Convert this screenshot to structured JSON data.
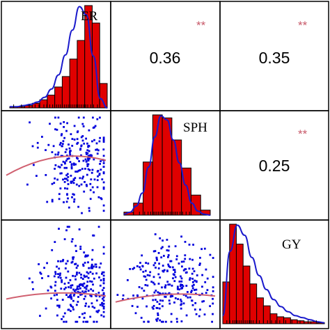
{
  "colors": {
    "bar_fill": "#e00000",
    "bar_stroke": "#000000",
    "density_line": "#1a1acc",
    "scatter_point": "#0000dd",
    "trend_line": "#d06070",
    "stars": "#c85a6a",
    "panel_border": "#000000",
    "rug": "#000000"
  },
  "chart_data": {
    "type": "pairs",
    "variables": [
      "ER",
      "SPH",
      "GY"
    ],
    "axes_visible": false,
    "grid": false,
    "correlations": [
      {
        "row": 0,
        "col": 1,
        "value": "0.36",
        "significance": "**"
      },
      {
        "row": 0,
        "col": 2,
        "value": "0.35",
        "significance": "**"
      },
      {
        "row": 1,
        "col": 2,
        "value": "0.25",
        "significance": "**"
      }
    ],
    "histograms": [
      {
        "variable": "ER",
        "type": "bar",
        "bin_counts": [
          1,
          1,
          2,
          4,
          7,
          11,
          18,
          27,
          42,
          58,
          88,
          73,
          21
        ],
        "density": [
          1,
          1,
          2,
          3,
          5,
          9,
          16,
          28,
          45,
          66,
          86,
          79,
          44,
          8,
          0
        ],
        "rug": [
          0.04,
          0.12,
          0.2,
          0.26,
          0.3,
          0.35,
          0.38,
          0.41,
          0.44,
          0.46,
          0.48,
          0.5,
          0.52,
          0.54,
          0.56,
          0.58,
          0.6,
          0.62,
          0.64,
          0.66,
          0.68,
          0.7,
          0.72,
          0.74,
          0.76,
          0.78,
          0.8,
          0.83,
          0.86,
          0.9
        ]
      },
      {
        "variable": "SPH",
        "type": "bar",
        "bin_counts": [
          3,
          12,
          53,
          100,
          97,
          75,
          47,
          20,
          5
        ],
        "density": [
          1,
          3,
          9,
          22,
          48,
          78,
          99,
          95,
          75,
          52,
          30,
          12,
          4,
          1,
          0
        ],
        "rug": [
          0.18,
          0.24,
          0.28,
          0.31,
          0.34,
          0.36,
          0.38,
          0.4,
          0.42,
          0.44,
          0.46,
          0.48,
          0.5,
          0.52,
          0.54,
          0.56,
          0.58,
          0.6,
          0.62,
          0.65,
          0.68,
          0.72,
          0.76
        ]
      },
      {
        "variable": "GY",
        "type": "bar",
        "bin_counts": [
          42,
          100,
          80,
          58,
          40,
          26,
          18,
          10,
          7,
          6,
          4,
          3,
          2,
          2,
          1
        ],
        "density": [
          8,
          72,
          98,
          88,
          66,
          48,
          34,
          24,
          17,
          12,
          8,
          6,
          4,
          2,
          1
        ],
        "rug": [
          0.04,
          0.07,
          0.1,
          0.12,
          0.14,
          0.16,
          0.18,
          0.2,
          0.22,
          0.24,
          0.26,
          0.28,
          0.3,
          0.33,
          0.36,
          0.4,
          0.44,
          0.48,
          0.52,
          0.56,
          0.62,
          0.68,
          0.76,
          0.84,
          0.92
        ]
      }
    ],
    "scatter_panels": [
      {
        "row": 1,
        "col": 0,
        "x": "ER",
        "y": "SPH",
        "points": 250,
        "trend": [
          0.35,
          0.6,
          0.6,
          0.45
        ],
        "seed": 11,
        "cx": 0.72,
        "cy": 0.48,
        "sx": 0.18,
        "sy": 0.24
      },
      {
        "row": 2,
        "col": 0,
        "x": "ER",
        "y": "GY",
        "points": 260,
        "trend": [
          0.15,
          0.75,
          0.2,
          0.72
        ],
        "seed": 23,
        "cx": 0.72,
        "cy": 0.6,
        "sx": 0.18,
        "sy": 0.22
      },
      {
        "row": 2,
        "col": 1,
        "x": "SPH",
        "y": "GY",
        "points": 260,
        "trend": [
          0.15,
          0.78,
          0.2,
          0.72
        ],
        "seed": 37,
        "cx": 0.55,
        "cy": 0.62,
        "sx": 0.2,
        "sy": 0.22
      }
    ]
  }
}
